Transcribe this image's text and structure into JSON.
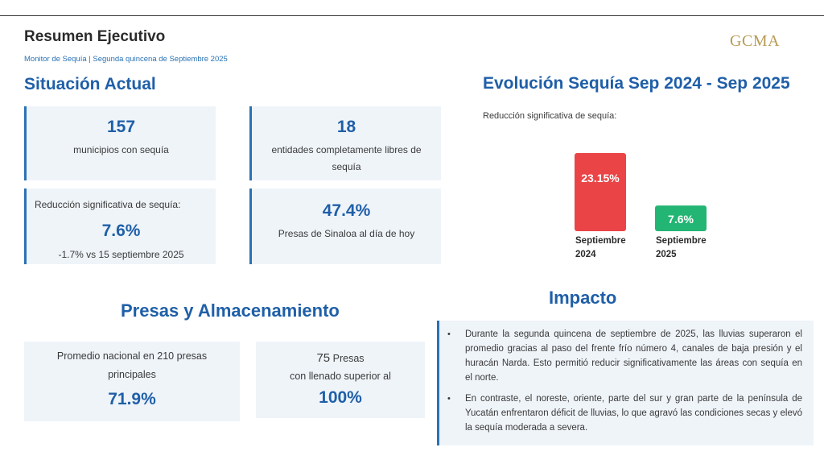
{
  "header": {
    "title": "Resumen Ejecutivo",
    "subtitle": "Monitor de Sequía | Segunda quincena de Septiembre 2025",
    "logo": "GCMA"
  },
  "situacion": {
    "heading": "Situación Actual",
    "card1": {
      "value": "157",
      "label": "municipios con sequía"
    },
    "card2": {
      "value": "18",
      "label_line1": "entidades completamente libres de",
      "label_line2": "sequía"
    },
    "card3": {
      "label": "Reducción significativa de sequía:",
      "value": "7.6%",
      "note": "-1.7% vs 15 septiembre 2025"
    },
    "card4": {
      "value": "47.4%",
      "label": "Presas de Sinaloa al día de hoy"
    }
  },
  "evolucion": {
    "heading": "Evolución Sequía Sep 2024 - Sep 2025",
    "note": "Reducción significativa de sequía:"
  },
  "chart_data": {
    "type": "bar",
    "categories": [
      "Septiembre 2024",
      "Septiembre 2025"
    ],
    "category_lines": [
      [
        "Septiembre",
        "2024"
      ],
      [
        "Septiembre",
        "2025"
      ]
    ],
    "values": [
      23.15,
      7.6
    ],
    "value_labels": [
      "23.15%",
      "7.6%"
    ],
    "colors": [
      "#ea4446",
      "#23b573"
    ],
    "title": "",
    "xlabel": "",
    "ylabel": ""
  },
  "presas": {
    "heading": "Presas y Almacenamiento",
    "card1": {
      "label_line1": "Promedio nacional en 210 presas",
      "label_line2": "principales",
      "value": "71.9%"
    },
    "card2": {
      "count": "75",
      "count_unit": "Presas",
      "label": "con llenado superior al",
      "value": "100%"
    }
  },
  "impacto": {
    "heading": "Impacto",
    "bullets": [
      "Durante la segunda quincena de septiembre de 2025, las lluvias superaron el promedio gracias al paso del frente frío número 4, canales de baja presión y el huracán Narda. Esto permitió reducir significativamente las áreas con sequía en el norte.",
      "En contraste, el noreste, oriente, parte del sur y gran parte de la península de Yucatán enfrentaron déficit de lluvias, lo que agravó las condiciones secas y elevó la sequía moderada a severa."
    ]
  }
}
